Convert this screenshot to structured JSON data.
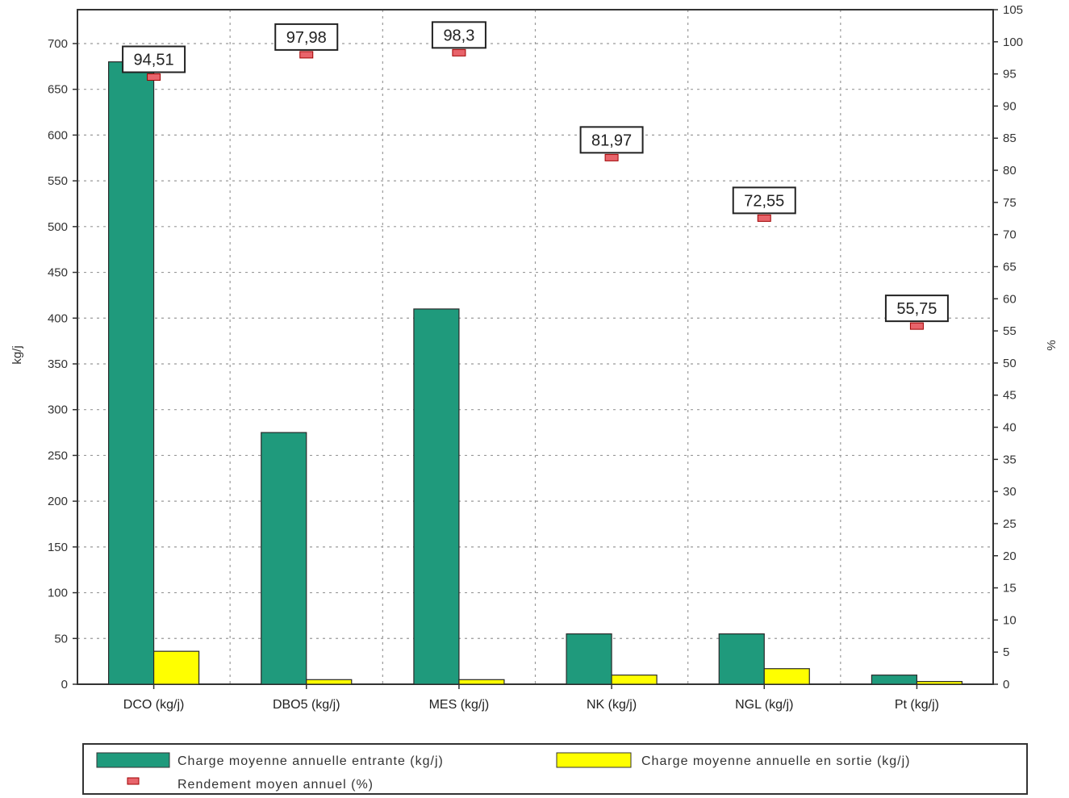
{
  "chart_data": {
    "type": "bar",
    "categories": [
      "DCO (kg/j)",
      "DBO5 (kg/j)",
      "MES (kg/j)",
      "NK (kg/j)",
      "NGL (kg/j)",
      "Pt (kg/j)"
    ],
    "series": [
      {
        "name": "Charge moyenne annuelle entrante (kg/j)",
        "axis": "left",
        "kind": "bar",
        "color": "#1f9a7c",
        "values": [
          680,
          275,
          410,
          55,
          55,
          10
        ]
      },
      {
        "name": "Charge moyenne annuelle en sortie (kg/j)",
        "axis": "left",
        "kind": "bar",
        "color": "#ffff00",
        "values": [
          36,
          5,
          5,
          10,
          17,
          3
        ]
      },
      {
        "name": "Rendement moyen annuel (%)",
        "axis": "right",
        "kind": "marker",
        "color": "#e8646b",
        "values": [
          94.51,
          97.98,
          98.3,
          81.97,
          72.55,
          55.75
        ],
        "labels": [
          "94,51",
          "97,98",
          "98,3",
          "81,97",
          "72,55",
          "55,75"
        ]
      }
    ],
    "ylabel_left": "kg/j",
    "ylabel_right": "%",
    "ylim_left": [
      0,
      737
    ],
    "ylim_right": [
      0,
      105
    ],
    "yticks_left": [
      0,
      50,
      100,
      150,
      200,
      250,
      300,
      350,
      400,
      450,
      500,
      550,
      600,
      650,
      700
    ],
    "yticks_right": [
      0,
      5,
      10,
      15,
      20,
      25,
      30,
      35,
      40,
      45,
      50,
      55,
      60,
      65,
      70,
      75,
      80,
      85,
      90,
      95,
      100,
      105
    ],
    "grid": true,
    "legend_position": "bottom"
  }
}
